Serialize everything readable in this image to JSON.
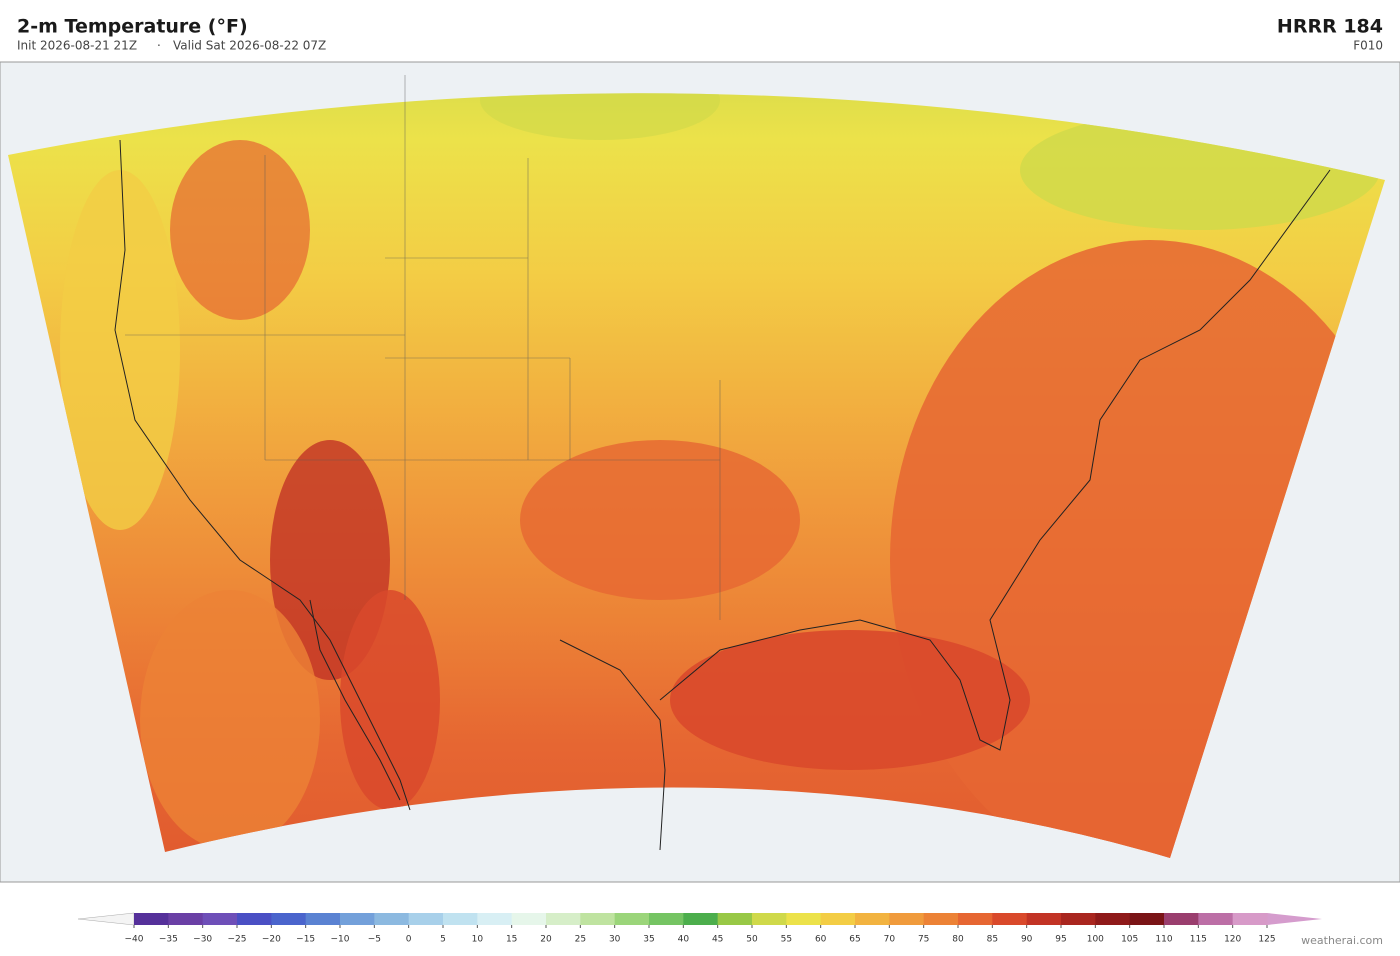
{
  "header": {
    "title": "2-m Temperature  (°F)",
    "init": "Init 2026-08-21 21Z",
    "separator": "·",
    "valid": "Valid Sat 2026-08-22 07Z",
    "model": "HRRR  184",
    "forecast_hour": "F010"
  },
  "colorbar": {
    "ticks": [
      {
        "value": -40,
        "label": "−40"
      },
      {
        "value": -35,
        "label": "−35"
      },
      {
        "value": -30,
        "label": "−30"
      },
      {
        "value": -25,
        "label": "−25"
      },
      {
        "value": -20,
        "label": "−20"
      },
      {
        "value": -15,
        "label": "−15"
      },
      {
        "value": -10,
        "label": "−10"
      },
      {
        "value": -5,
        "label": "−5"
      },
      0,
      5,
      10,
      15,
      20,
      25,
      30,
      35,
      40,
      45,
      50,
      55,
      60,
      65,
      70,
      75,
      80,
      85,
      90,
      95,
      100,
      105,
      110,
      115,
      120,
      125
    ],
    "colors": [
      "#55309a",
      "#6a3fa5",
      "#6e4fb8",
      "#4a4fc4",
      "#4a64cc",
      "#5a82d2",
      "#73a0da",
      "#8cb9e0",
      "#a8d0ea",
      "#c0e2f0",
      "#d8eff4",
      "#e6f6ea",
      "#d6eec8",
      "#bfe3a0",
      "#9bd57a",
      "#75c463",
      "#4cae4c",
      "#98c846",
      "#cfd94a",
      "#ece24a",
      "#f3cd45",
      "#f2b340",
      "#f09b3c",
      "#ec8236",
      "#e66632",
      "#d9492b",
      "#c23325",
      "#a9261f",
      "#8f1a1a",
      "#7a1416",
      "#9a3e6e",
      "#bc6fa6",
      "#d79ac8"
    ],
    "under_color": "#f4f4f4",
    "over_color": "#d59ccd"
  },
  "footer": {
    "credit": "weatherai.com"
  }
}
